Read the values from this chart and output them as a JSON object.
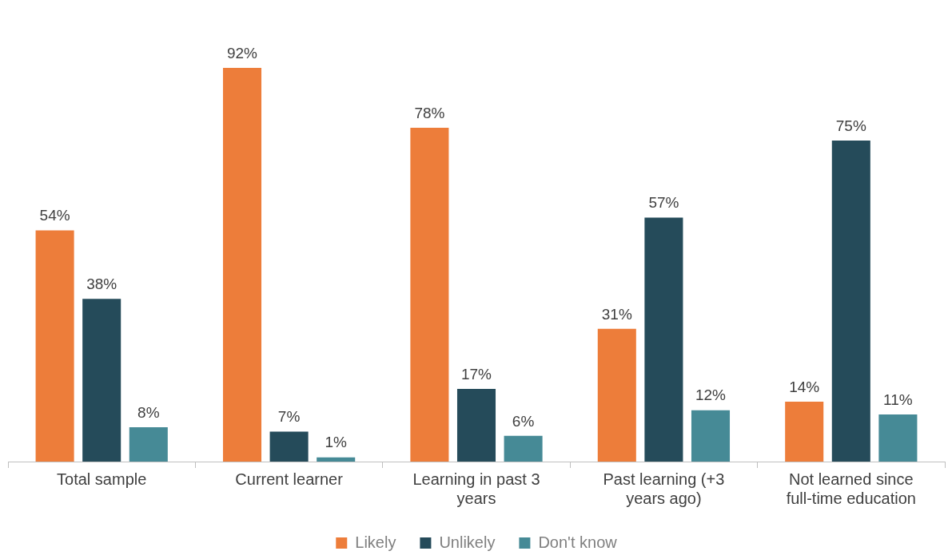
{
  "chart_data": {
    "type": "bar",
    "categories": [
      "Total sample",
      "Current learner",
      "Learning in past 3 years",
      "Past learning (+3 years ago)",
      "Not learned since full-time education"
    ],
    "series": [
      {
        "name": "Likely",
        "color": "#ed7d3a",
        "values": [
          54,
          92,
          78,
          31,
          14
        ],
        "value_labels": [
          "54%",
          "92%",
          "78%",
          "31%",
          "14%"
        ]
      },
      {
        "name": "Unlikely",
        "color": "#254b5a",
        "values": [
          38,
          7,
          17,
          57,
          75
        ],
        "value_labels": [
          "38%",
          "7%",
          "17%",
          "57%",
          "75%"
        ]
      },
      {
        "name": "Don't know",
        "color": "#468a96",
        "values": [
          8,
          1,
          6,
          12,
          11
        ],
        "value_labels": [
          "8%",
          "1%",
          "6%",
          "12%",
          "11%"
        ]
      }
    ],
    "legend": "bottom"
  }
}
